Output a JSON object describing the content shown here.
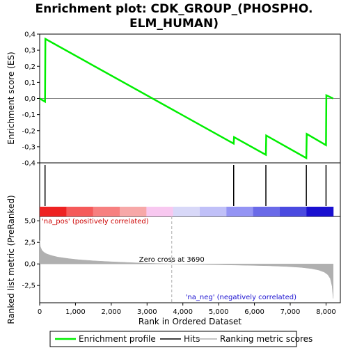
{
  "chart_data": [
    {
      "type": "line",
      "title": "Enrichment plot: CDK_GROUP_(PHOSPHO.\nELM_HUMAN)",
      "ylabel": "Enrichment score (ES)",
      "xlim": [
        0,
        8400
      ],
      "ylim": [
        -0.4,
        0.4
      ],
      "yticks": [
        "-0,4",
        "-0,3",
        "-0,2",
        "-0,1",
        "0,0",
        "0,1",
        "0,2",
        "0,3",
        "0,4"
      ],
      "grid": false,
      "series": [
        {
          "name": "Enrichment profile",
          "color": "#00ee00",
          "x": [
            0,
            150,
            160,
            5420,
            5430,
            6320,
            6330,
            7450,
            7460,
            8000,
            8010,
            8200
          ],
          "y": [
            0.0,
            -0.02,
            0.37,
            -0.28,
            -0.24,
            -0.35,
            -0.23,
            -0.37,
            -0.22,
            -0.29,
            0.02,
            0.0
          ]
        }
      ]
    },
    {
      "type": "line",
      "title": "",
      "ylabel": "",
      "series": [
        {
          "name": "Hits",
          "color": "#000000",
          "x": [
            150,
            5420,
            6320,
            7450,
            8000
          ]
        }
      ]
    },
    {
      "type": "area",
      "xlabel": "Rank in Ordered Dataset",
      "ylabel": "Ranked list metric (PreRanked)",
      "xlim": [
        0,
        8400
      ],
      "ylim": [
        -4.5,
        5.5
      ],
      "xticks": [
        "0",
        "1,000",
        "2,000",
        "3,000",
        "4,000",
        "5,000",
        "6,000",
        "7,000",
        "8,000"
      ],
      "yticks": [
        "-2,5",
        "0,0",
        "2,5",
        "5,0"
      ],
      "zero_cross": 3690,
      "series": [
        {
          "name": "Ranking metric scores",
          "color": "#b0b0b0",
          "x": [
            0,
            20,
            60,
            120,
            200,
            350,
            500,
            800,
            1100,
            1500,
            2000,
            2500,
            3000,
            3690,
            4500,
            5200,
            5800,
            6400,
            6900,
            7300,
            7600,
            7800,
            7950,
            8050,
            8120,
            8170,
            8200
          ],
          "y": [
            2.7,
            2.0,
            1.6,
            1.35,
            1.15,
            0.95,
            0.8,
            0.62,
            0.48,
            0.36,
            0.25,
            0.16,
            0.08,
            0.0,
            -0.06,
            -0.11,
            -0.16,
            -0.22,
            -0.3,
            -0.4,
            -0.55,
            -0.72,
            -0.95,
            -1.25,
            -1.7,
            -2.6,
            -4.0
          ]
        }
      ]
    }
  ],
  "annotations": {
    "zero_cross": "Zero cross at 3690",
    "pos_label": "'na_pos' (positively correlated)",
    "neg_label": "'na_neg' (negatively correlated)"
  },
  "ranked_bar_colors": [
    "#ee2222",
    "#f55a5a",
    "#f78080",
    "#f7a8a8",
    "#f8c8f0",
    "#d8d8f8",
    "#c0c0f8",
    "#9494f4",
    "#6a6ae8",
    "#4a4ae0",
    "#1a10d0"
  ],
  "legend": {
    "position": "bottom",
    "items": [
      {
        "label": "Enrichment profile",
        "color": "#00ee00"
      },
      {
        "label": "Hits",
        "color": "#000000"
      },
      {
        "label": "Ranking metric scores",
        "color": "#b0b0b0"
      }
    ]
  }
}
